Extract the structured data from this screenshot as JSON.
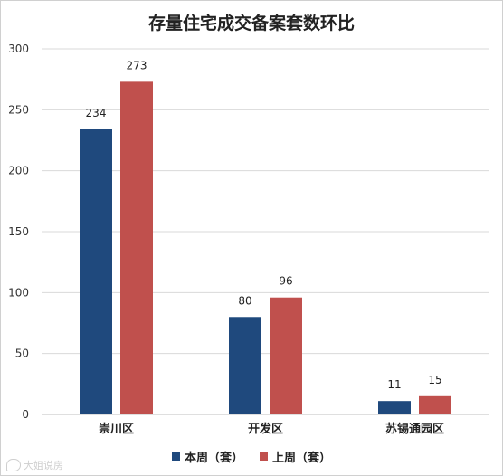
{
  "chart_data": {
    "type": "bar",
    "title": "存量住宅成交备案套数环比",
    "categories": [
      "崇川区",
      "开发区",
      "苏锡通园区"
    ],
    "series": [
      {
        "name": "本周（套）",
        "values": [
          234,
          80,
          11
        ],
        "color": "#1f497d"
      },
      {
        "name": "上周（套）",
        "values": [
          273,
          96,
          15
        ],
        "color": "#c0504d"
      }
    ],
    "ylim": [
      0,
      300
    ],
    "yticks": [
      0,
      50,
      100,
      150,
      200,
      250,
      300
    ],
    "grid": true,
    "legend": "bottom",
    "xlabel": "",
    "ylabel": ""
  },
  "watermark": {
    "text": "大姐说房"
  }
}
